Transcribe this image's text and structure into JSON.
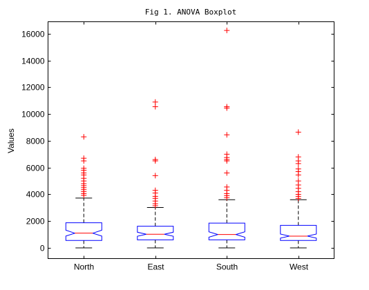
{
  "chart_data": {
    "type": "boxplot",
    "title": "Fig 1. ANOVA Boxplot",
    "xlabel": "",
    "ylabel": "Values",
    "ylim": [
      -800,
      16900
    ],
    "yticks": [
      0,
      2000,
      4000,
      6000,
      8000,
      10000,
      12000,
      14000,
      16000
    ],
    "grid": false,
    "notched": true,
    "colors": {
      "box": "#0000ff",
      "median": "#ff0000",
      "whisker": "#000000",
      "outlier": "#ff0000",
      "axis": "#000000"
    },
    "categories": [
      "North",
      "East",
      "South",
      "West"
    ],
    "boxes": [
      {
        "category": "North",
        "whisker_low": 0,
        "q1": 550,
        "median": 1100,
        "q3": 1880,
        "whisker_high": 3720,
        "notch_low": 880,
        "notch_high": 1320,
        "outliers": [
          3920,
          4050,
          4200,
          4350,
          4500,
          4650,
          4800,
          5000,
          5200,
          5450,
          5600,
          5800,
          5950,
          6500,
          6700,
          8300
        ]
      },
      {
        "category": "East",
        "whisker_low": 0,
        "q1": 600,
        "median": 1020,
        "q3": 1620,
        "whisker_high": 3020,
        "notch_low": 870,
        "notch_high": 1170,
        "outliers": [
          3150,
          3300,
          3500,
          3700,
          3850,
          4100,
          4300,
          5400,
          6500,
          6600,
          10550,
          10900
        ]
      },
      {
        "category": "South",
        "whisker_low": 0,
        "q1": 600,
        "median": 1000,
        "q3": 1850,
        "whisker_high": 3600,
        "notch_low": 800,
        "notch_high": 1200,
        "outliers": [
          3750,
          3900,
          4050,
          4300,
          4550,
          5600,
          6500,
          6600,
          6750,
          7000,
          8450,
          10450,
          10550,
          16250
        ]
      },
      {
        "category": "West",
        "whisker_low": 0,
        "q1": 550,
        "median": 880,
        "q3": 1680,
        "whisker_high": 3600,
        "notch_low": 730,
        "notch_high": 1030,
        "outliers": [
          3700,
          3850,
          4000,
          4200,
          4450,
          4700,
          5000,
          5450,
          5700,
          5900,
          6300,
          6500,
          6800,
          8650
        ]
      }
    ]
  }
}
